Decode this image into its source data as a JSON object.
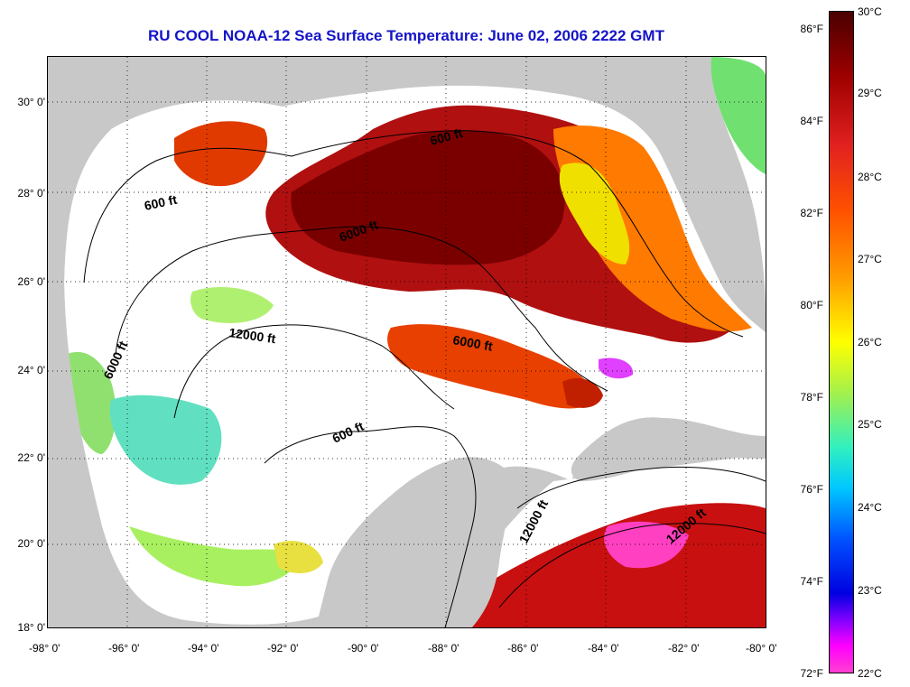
{
  "title": "RU COOL  NOAA-12  Sea Surface Temperature:  June 02, 2006 2222 GMT",
  "lat_labels": [
    "30° 0'",
    "28° 0'",
    "26° 0'",
    "24° 0'",
    "22° 0'",
    "20° 0'",
    "18° 0'"
  ],
  "lon_labels": [
    "-98° 0'",
    "-96° 0'",
    "-94° 0'",
    "-92° 0'",
    "-90° 0'",
    "-88° 0'",
    "-86° 0'",
    "-84° 0'",
    "-82° 0'",
    "-80° 0'"
  ],
  "contour_labels": [
    "600 ft",
    "600 ft",
    "6000 ft",
    "12000 ft",
    "6000 ft",
    "6000 ft",
    "600 ft",
    "12000 ft",
    "12000 ft"
  ],
  "colorbar": {
    "fahrenheit": [
      "86°F",
      "84°F",
      "82°F",
      "80°F",
      "78°F",
      "76°F",
      "74°F",
      "72°F"
    ],
    "celsius": [
      "30°C",
      "29°C",
      "28°C",
      "27°C",
      "26°C",
      "25°C",
      "24°C",
      "23°C",
      "22°C"
    ],
    "range_f": [
      72,
      86.5
    ],
    "range_c": [
      22,
      30
    ]
  },
  "map_extent": {
    "lon": [
      -98,
      -80
    ],
    "lat": [
      18,
      31
    ]
  },
  "colors": {
    "title": "#1414c8",
    "land": "#c8c8c8",
    "ocean_nodata": "#ffffff"
  }
}
